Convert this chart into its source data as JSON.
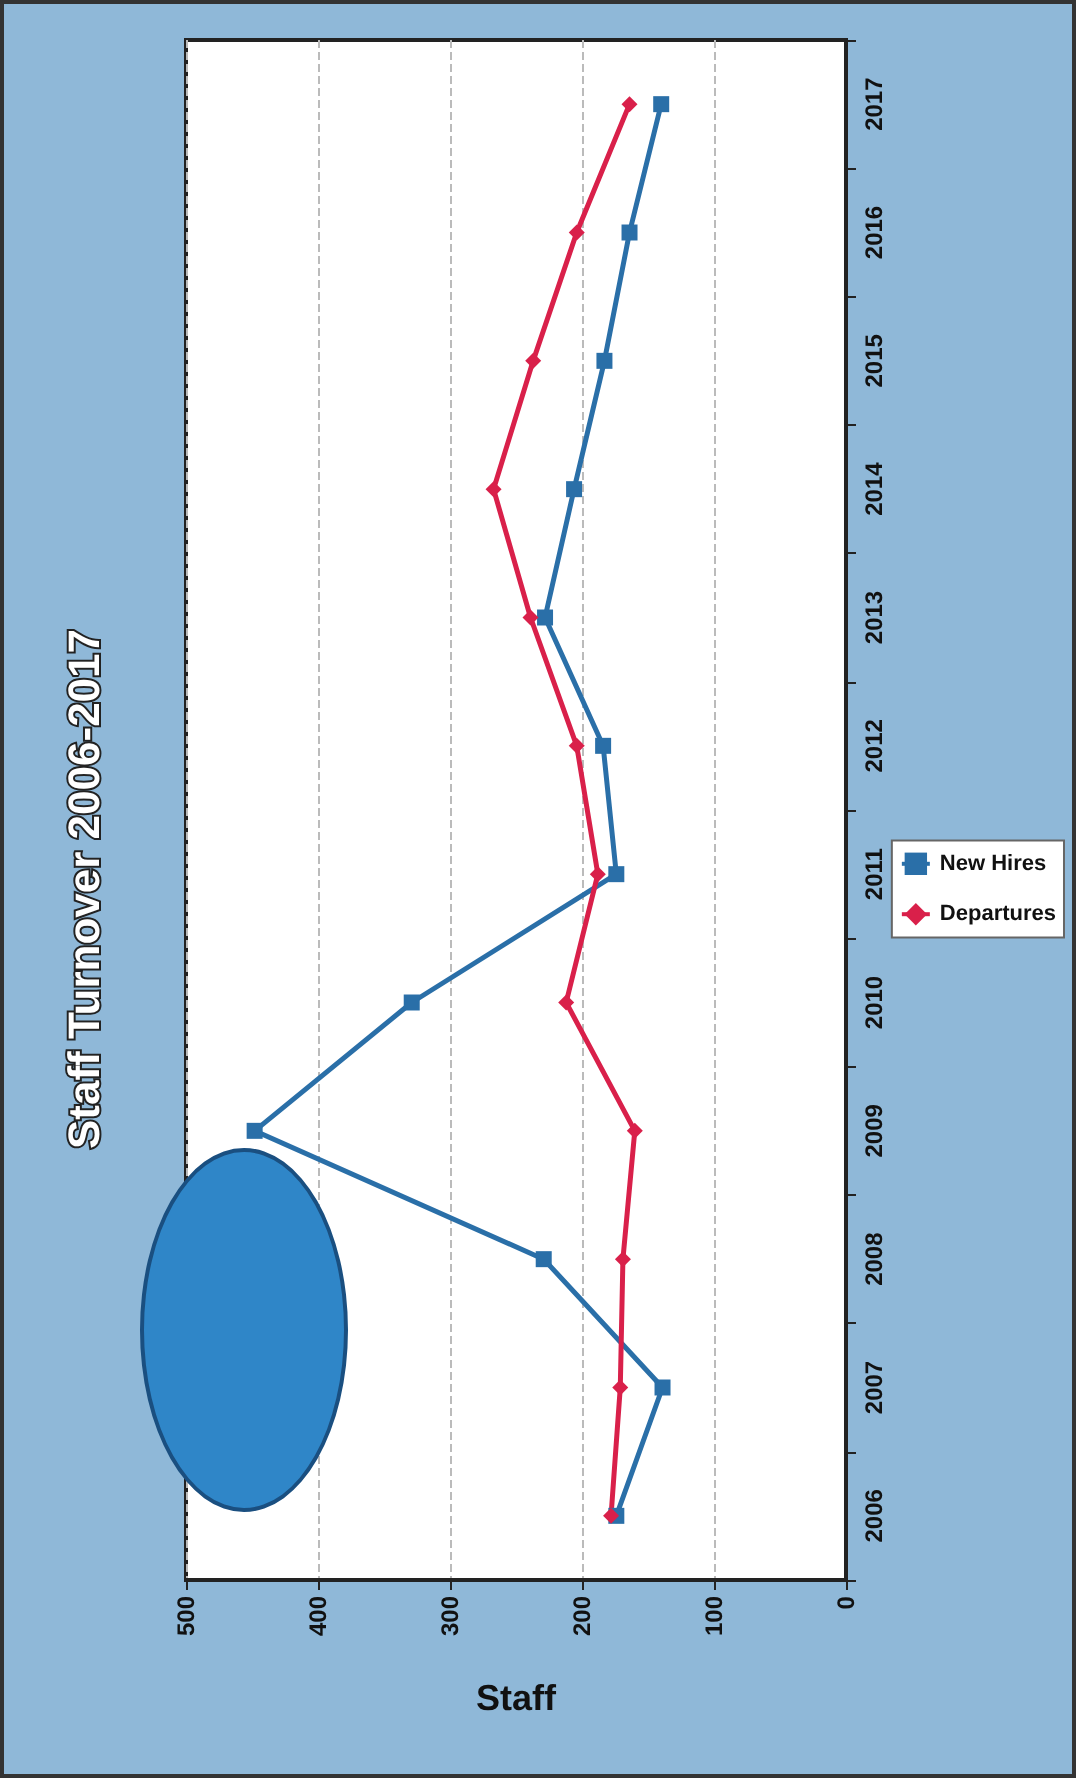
{
  "chart_data": {
    "type": "line",
    "orientation": "horizontal",
    "title": "Staff Turnover 2006-2017",
    "xlabel": "Staff",
    "categories": [
      "2017",
      "2016",
      "2015",
      "2014",
      "2013",
      "2012",
      "2011",
      "2010",
      "2009",
      "2008",
      "2007",
      "2006"
    ],
    "series": [
      {
        "name": "New Hires",
        "color": "#2a6fa8",
        "marker": "square",
        "values": [
          140,
          164,
          183,
          206,
          228,
          184,
          174,
          329,
          448,
          229,
          139,
          174
        ]
      },
      {
        "name": "Departures",
        "color": "#d9204a",
        "marker": "diamond",
        "values": [
          164,
          204,
          237,
          267,
          239,
          204,
          188,
          212,
          160,
          169,
          171,
          178
        ]
      }
    ],
    "xlim": [
      500,
      0
    ],
    "xticks": [
      0,
      100,
      200,
      300,
      400,
      500
    ],
    "grid": "x",
    "legend": "right",
    "line_style": "solid"
  }
}
